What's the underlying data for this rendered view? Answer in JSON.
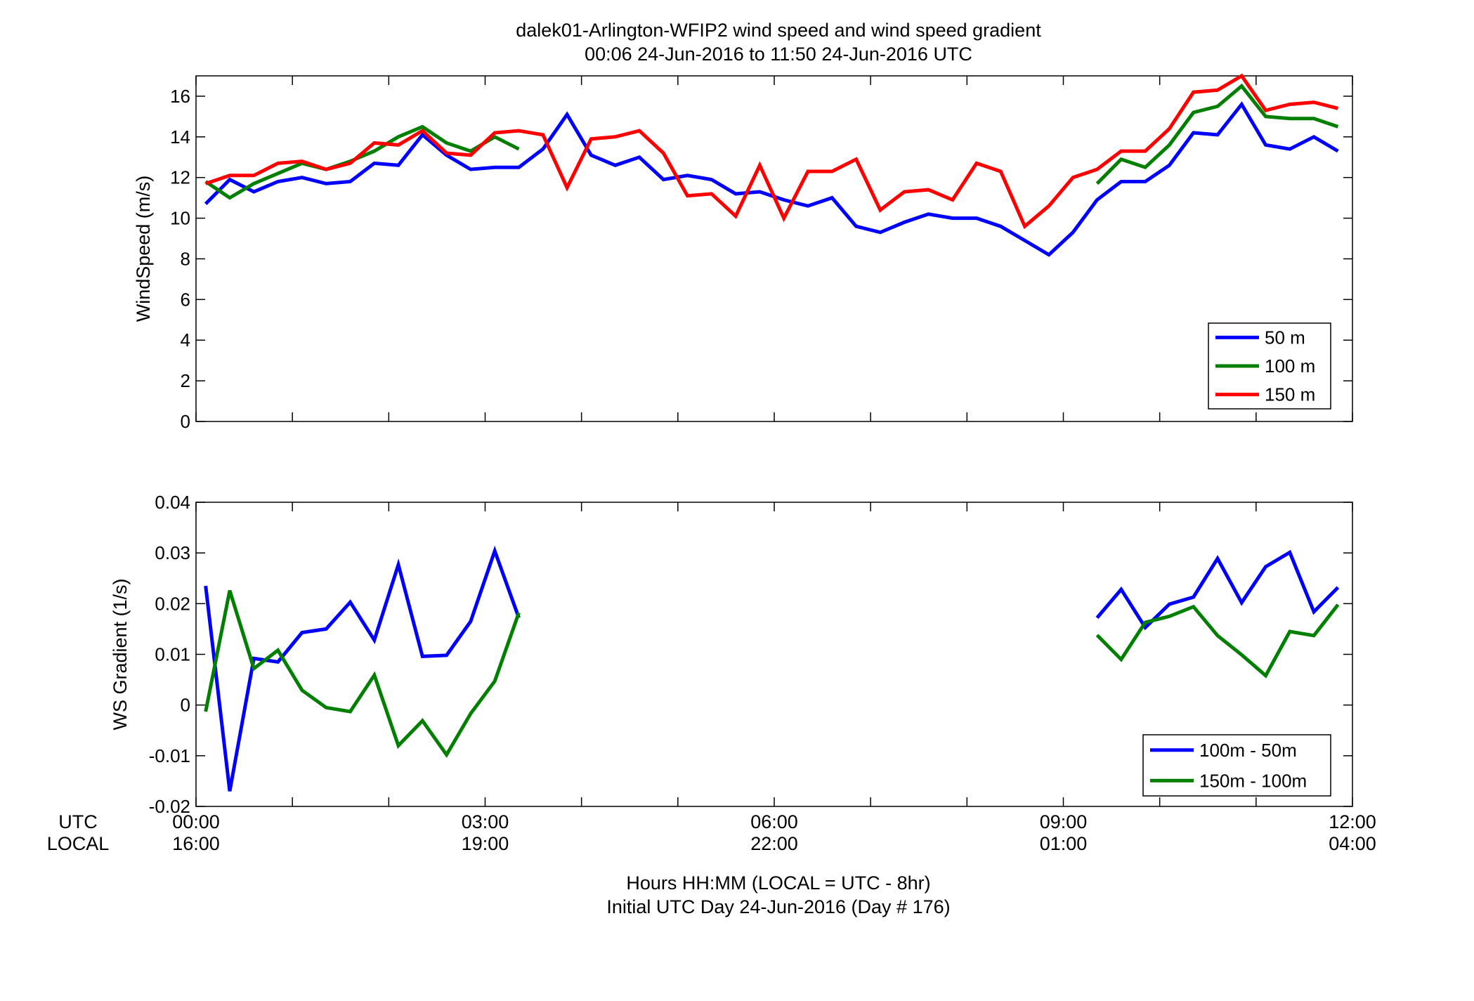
{
  "title": {
    "line1": "dalek01-Arlington-WFIP2  wind speed and wind speed gradient",
    "line2": "00:06 24-Jun-2016 to 11:50 24-Jun-2016  UTC"
  },
  "time_axis": {
    "row_labels": [
      "UTC",
      "LOCAL"
    ],
    "ticks": [
      0,
      3,
      6,
      9,
      12
    ],
    "utc_labels": [
      "00:00",
      "03:00",
      "06:00",
      "09:00",
      "12:00"
    ],
    "local_labels": [
      "16:00",
      "19:00",
      "22:00",
      "01:00",
      "04:00"
    ],
    "xlabel_line1": "Hours HH:MM  (LOCAL = UTC - 8hr)",
    "xlabel_line2": "Initial UTC Day 24-Jun-2016 (Day # 176)"
  },
  "colors": {
    "blue": "#0000ff",
    "green": "#007f00",
    "red": "#ff0000"
  },
  "chart_data": [
    {
      "type": "line",
      "ylabel": "WindSpeed (m/s)",
      "xlim": [
        0,
        12
      ],
      "ylim": [
        0,
        17
      ],
      "yticks": [
        0,
        2,
        4,
        6,
        8,
        10,
        12,
        14,
        16
      ],
      "ytick_labels": [
        "0",
        "2",
        "4",
        "6",
        "8",
        "10",
        "12",
        "14",
        "16"
      ],
      "x": [
        0.1,
        0.35,
        0.6,
        0.85,
        1.1,
        1.35,
        1.6,
        1.85,
        2.1,
        2.35,
        2.6,
        2.85,
        3.1,
        3.35,
        3.6,
        3.85,
        4.1,
        4.35,
        4.6,
        4.85,
        5.1,
        5.35,
        5.6,
        5.85,
        6.1,
        6.35,
        6.6,
        6.85,
        7.1,
        7.35,
        7.6,
        7.85,
        8.1,
        8.35,
        8.6,
        8.85,
        9.1,
        9.35,
        9.6,
        9.85,
        10.1,
        10.35,
        10.6,
        10.85,
        11.1,
        11.35,
        11.6,
        11.85
      ],
      "series": [
        {
          "name": "50 m",
          "color": "#0000ff",
          "values": [
            10.7,
            11.9,
            11.3,
            11.8,
            12.0,
            11.7,
            11.8,
            12.7,
            12.6,
            14.1,
            13.1,
            12.4,
            12.5,
            12.5,
            13.4,
            15.1,
            13.1,
            12.6,
            13.0,
            11.9,
            12.1,
            11.9,
            11.2,
            11.3,
            10.9,
            10.6,
            11.0,
            9.6,
            9.3,
            9.8,
            10.2,
            10.0,
            10.0,
            9.6,
            8.9,
            8.2,
            9.3,
            10.9,
            11.8,
            11.8,
            12.6,
            14.2,
            14.1,
            15.6,
            13.6,
            13.4,
            14.0,
            13.3
          ]
        },
        {
          "name": "100 m",
          "color": "#007f00",
          "values": [
            11.8,
            11.0,
            11.7,
            12.2,
            12.7,
            12.4,
            12.8,
            13.3,
            14.0,
            14.5,
            13.7,
            13.3,
            14.0,
            13.4,
            null,
            null,
            null,
            null,
            null,
            null,
            null,
            null,
            null,
            null,
            null,
            null,
            null,
            null,
            null,
            null,
            null,
            null,
            null,
            null,
            null,
            null,
            null,
            11.7,
            12.9,
            12.5,
            13.6,
            15.2,
            15.5,
            16.5,
            15.0,
            14.9,
            14.9,
            14.5
          ]
        },
        {
          "name": "150 m",
          "color": "#ff0000",
          "values": [
            11.7,
            12.1,
            12.1,
            12.7,
            12.8,
            12.4,
            12.7,
            13.7,
            13.6,
            14.3,
            13.2,
            13.1,
            14.2,
            14.3,
            14.1,
            11.5,
            13.9,
            14.0,
            14.3,
            13.2,
            11.1,
            11.2,
            10.1,
            12.6,
            10.0,
            12.3,
            12.3,
            12.9,
            10.4,
            11.3,
            11.4,
            10.9,
            12.7,
            12.3,
            9.6,
            10.6,
            12.0,
            12.4,
            13.3,
            13.3,
            14.4,
            16.2,
            16.3,
            17.0,
            15.3,
            15.6,
            15.7,
            15.4
          ]
        }
      ],
      "legend": {
        "position": "bottom-right",
        "entries": [
          "50 m",
          "100 m",
          "150 m"
        ]
      }
    },
    {
      "type": "line",
      "ylabel": "WS Gradient (1/s)",
      "xlim": [
        0,
        12
      ],
      "ylim": [
        -0.02,
        0.04
      ],
      "yticks": [
        -0.02,
        -0.01,
        0,
        0.01,
        0.02,
        0.03,
        0.04
      ],
      "ytick_labels": [
        "-0.02",
        "-0.01",
        "0",
        "0.01",
        "0.02",
        "0.03",
        "0.04"
      ],
      "x": [
        0.1,
        0.35,
        0.6,
        0.85,
        1.1,
        1.35,
        1.6,
        1.85,
        2.1,
        2.35,
        2.6,
        2.85,
        3.1,
        3.35,
        3.6,
        3.85,
        4.1,
        4.35,
        4.6,
        4.85,
        5.1,
        5.35,
        5.6,
        5.85,
        6.1,
        6.35,
        6.6,
        6.85,
        7.1,
        7.35,
        7.6,
        7.85,
        8.1,
        8.35,
        8.6,
        8.85,
        9.1,
        9.35,
        9.6,
        9.85,
        10.1,
        10.35,
        10.6,
        10.85,
        11.1,
        11.35,
        11.6,
        11.85
      ],
      "series": [
        {
          "name": "100m - 50m",
          "color": "#0000ff",
          "values": [
            0.0235,
            -0.017,
            0.0092,
            0.0085,
            0.0143,
            0.015,
            0.0203,
            0.0128,
            0.0277,
            0.0096,
            0.0098,
            0.0165,
            0.0304,
            0.0172,
            null,
            null,
            null,
            null,
            null,
            null,
            null,
            null,
            null,
            null,
            null,
            null,
            null,
            null,
            null,
            null,
            null,
            null,
            null,
            null,
            null,
            null,
            null,
            0.0172,
            0.0228,
            0.0153,
            0.0199,
            0.0213,
            0.0289,
            0.0202,
            0.0273,
            0.0301,
            0.0184,
            0.0232
          ]
        },
        {
          "name": "150m - 100m",
          "color": "#007f00",
          "values": [
            -0.0013,
            0.0226,
            0.0072,
            0.0108,
            0.0029,
            -0.0005,
            -0.0013,
            0.0059,
            -0.008,
            -0.0031,
            -0.0098,
            -0.0017,
            0.0047,
            0.0182,
            null,
            null,
            null,
            null,
            null,
            null,
            null,
            null,
            null,
            null,
            null,
            null,
            null,
            null,
            null,
            null,
            null,
            null,
            null,
            null,
            null,
            null,
            null,
            0.0138,
            0.009,
            0.0163,
            0.0175,
            0.0194,
            0.0137,
            0.0099,
            0.0058,
            0.0145,
            0.0137,
            0.0198
          ]
        }
      ],
      "legend": {
        "position": "bottom-right",
        "entries": [
          "100m - 50m",
          "150m - 100m"
        ]
      }
    }
  ]
}
